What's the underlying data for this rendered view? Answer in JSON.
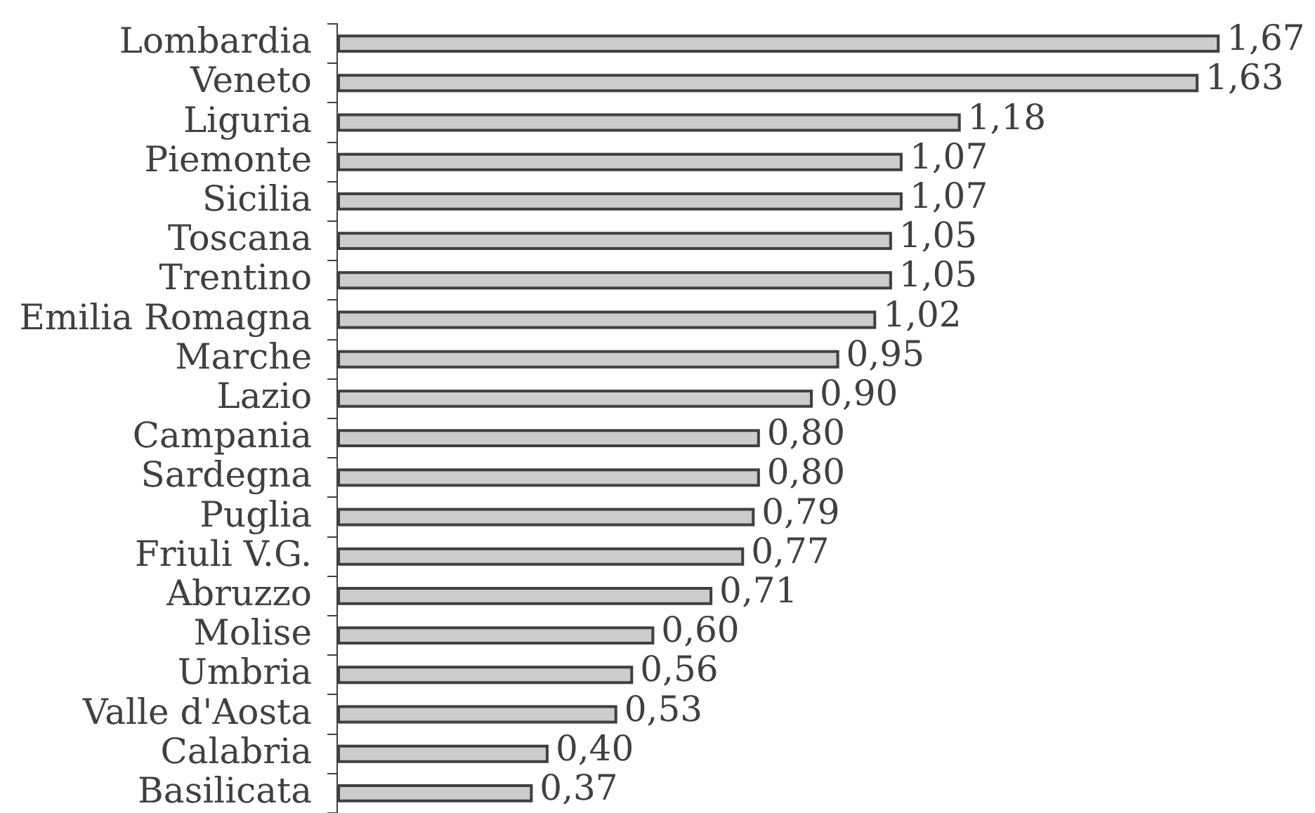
{
  "chart_data": {
    "type": "bar",
    "orientation": "horizontal",
    "categories": [
      "Lombardia",
      "Veneto",
      "Liguria",
      "Piemonte",
      "Sicilia",
      "Toscana",
      "Trentino",
      "Emilia Romagna",
      "Marche",
      "Lazio",
      "Campania",
      "Sardegna",
      "Puglia",
      "Friuli V.G.",
      "Abruzzo",
      "Molise",
      "Umbria",
      "Valle d'Aosta",
      "Calabria",
      "Basilicata"
    ],
    "values": [
      1.67,
      1.63,
      1.18,
      1.07,
      1.07,
      1.05,
      1.05,
      1.02,
      0.95,
      0.9,
      0.8,
      0.8,
      0.79,
      0.77,
      0.71,
      0.6,
      0.56,
      0.53,
      0.4,
      0.37
    ],
    "value_labels": [
      "1,67",
      "1,63",
      "1,18",
      "1,07",
      "1,07",
      "1,05",
      "1,05",
      "1,02",
      "0,95",
      "0,90",
      "0,80",
      "0,80",
      "0,79",
      "0,77",
      "0,71",
      "0,60",
      "0,56",
      "0,53",
      "0,40",
      "0,37"
    ],
    "color": "#cccccc",
    "tick_labels": "y",
    "grid": false,
    "legend": false
  }
}
